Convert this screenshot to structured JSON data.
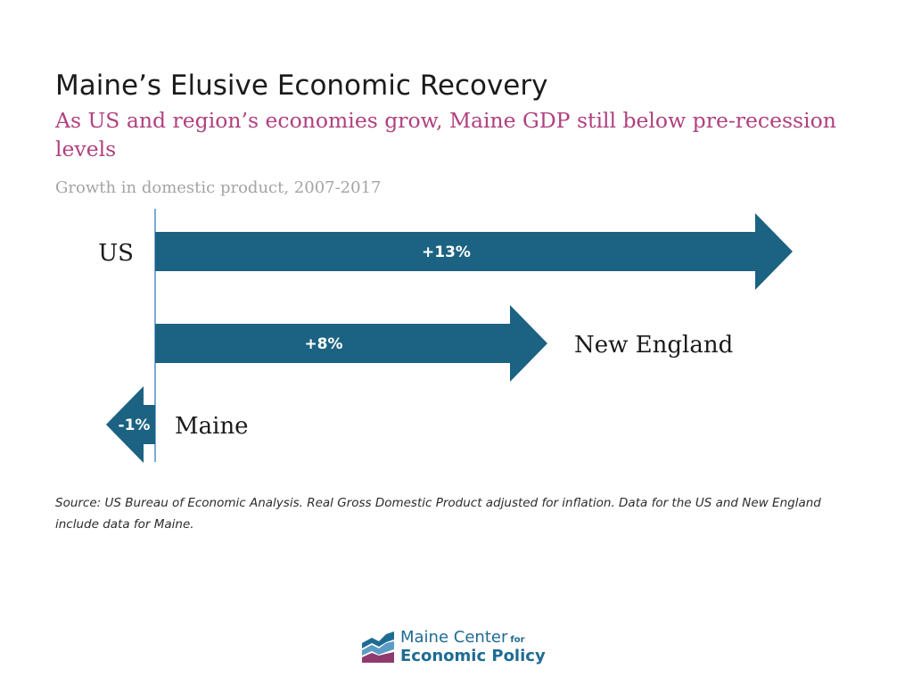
{
  "header": {
    "title": "Maine’s Elusive Economic Recovery",
    "subtitle": "As US and region’s economies grow, Maine GDP still below pre-recession levels",
    "caption": "Growth in domestic product, 2007-2017"
  },
  "colors": {
    "arrow": "#1c6282",
    "baseline": "#7aa9d6",
    "subtitle": "#b0417f"
  },
  "chart_data": {
    "type": "bar",
    "title": "Maine’s Elusive Economic Recovery",
    "subtitle": "As US and region’s economies grow, Maine GDP still below pre-recession levels",
    "ylabel": "Growth in domestic product, 2007-2017",
    "categories": [
      "US",
      "New England",
      "Maine"
    ],
    "values": [
      13,
      8,
      -1
    ],
    "value_labels": [
      "+13%",
      "+8%",
      "-1%"
    ],
    "units": "percent"
  },
  "footer": {
    "source": "Source: US Bureau of Economic Analysis. Real Gross Domestic Product adjusted for inflation. Data for the US and New England include data for Maine."
  },
  "logo": {
    "line1": "Maine Center",
    "line1_small": "for",
    "line2": "Economic Policy"
  }
}
